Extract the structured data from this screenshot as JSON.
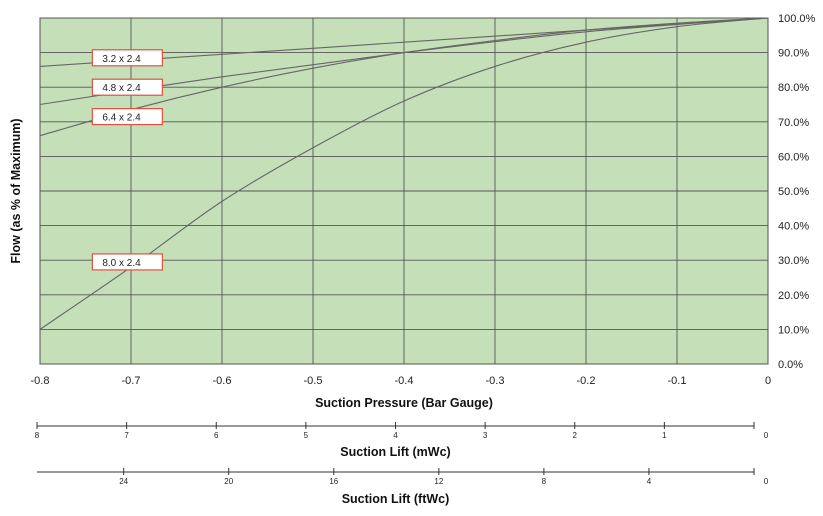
{
  "chart_data": {
    "type": "line",
    "xlabel": "Suction Pressure (Bar Gauge)",
    "ylabel": "Flow (as % of Maximum)",
    "xlim": [
      -0.8,
      0
    ],
    "ylim": [
      0,
      100
    ],
    "x_ticks": [
      "-0.8",
      "-0.7",
      "-0.6",
      "-0.5",
      "-0.4",
      "-0.3",
      "-0.2",
      "-0.1",
      "0"
    ],
    "y_ticks": [
      "0.0%",
      "10.0%",
      "20.0%",
      "30.0%",
      "40.0%",
      "50.0%",
      "60.0%",
      "70.0%",
      "80.0%",
      "90.0%",
      "100.0%"
    ],
    "grid": true,
    "plot_background": "#c5e0b8",
    "grid_color": "#555555",
    "line_color": "#666666",
    "label_border_color": "#e05040",
    "series": [
      {
        "name": "3.2 x 2.4",
        "x": [
          -0.8,
          -0.6,
          -0.4,
          -0.2,
          0
        ],
        "y": [
          86,
          89.5,
          93,
          96.5,
          100
        ]
      },
      {
        "name": "4.8 x 2.4",
        "x": [
          -0.8,
          -0.6,
          -0.4,
          -0.2,
          0
        ],
        "y": [
          75,
          83,
          90,
          96,
          100
        ]
      },
      {
        "name": "6.4 x 2.4",
        "x": [
          -0.8,
          -0.7,
          -0.6,
          -0.5,
          -0.4,
          -0.3,
          -0.2,
          -0.1,
          0
        ],
        "y": [
          66,
          73.5,
          80,
          85.5,
          90,
          93.5,
          96.5,
          98.5,
          100
        ]
      },
      {
        "name": "8.0 x 2.4",
        "x": [
          -0.8,
          -0.7,
          -0.6,
          -0.5,
          -0.4,
          -0.3,
          -0.2,
          -0.1,
          0
        ],
        "y": [
          10,
          28,
          47,
          62.5,
          76,
          86,
          93,
          97.5,
          100
        ]
      }
    ],
    "secondary_axes": [
      {
        "label": "Suction Lift (mWc)",
        "ticks": [
          "8",
          "7",
          "6",
          "5",
          "4",
          "3",
          "2",
          "1",
          "0"
        ],
        "values": [
          8,
          7,
          6,
          5,
          4,
          3,
          2,
          1,
          0
        ],
        "range": [
          8,
          0
        ]
      },
      {
        "label": "Suction Lift (ftWc)",
        "ticks": [
          "24",
          "20",
          "16",
          "12",
          "8",
          "4",
          "0"
        ],
        "values": [
          24,
          20,
          16,
          12,
          8,
          4,
          0
        ],
        "range": [
          27.3,
          0
        ]
      }
    ]
  }
}
